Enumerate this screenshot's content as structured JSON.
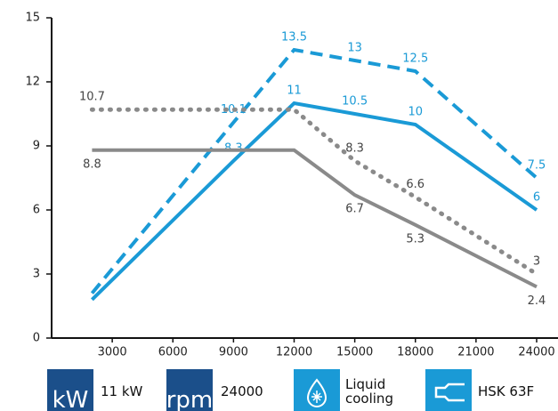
{
  "chart_data": {
    "type": "line",
    "xlim": [
      0,
      24000
    ],
    "xticks": [
      3000,
      6000,
      9000,
      12000,
      15000,
      18000,
      21000,
      24000
    ],
    "ylim": [
      0,
      15
    ],
    "yticks": [
      0,
      3,
      6,
      9,
      12,
      15
    ],
    "series": [
      {
        "color": "#1a9ad6",
        "dash": "dashed",
        "label_side": "above",
        "x": [
          2000,
          9000,
          12000,
          15000,
          18000,
          24000
        ],
        "values": [
          2.1,
          10.1,
          13.5,
          13,
          12.5,
          7.5
        ],
        "value_labels": [
          null,
          "10.1",
          "13.5",
          "13",
          "12.5",
          "7.5"
        ]
      },
      {
        "color": "#1a9ad6",
        "dash": "solid",
        "label_side": "above",
        "x": [
          2000,
          9000,
          12000,
          15000,
          18000,
          24000
        ],
        "values": [
          1.8,
          8.3,
          11,
          10.5,
          10,
          6
        ],
        "value_labels": [
          null,
          "8.3",
          "11",
          "10.5",
          "10",
          "6"
        ]
      },
      {
        "color": "#8a8a8a",
        "dash": "dotted",
        "label_side": "above",
        "x": [
          2000,
          12000,
          15000,
          18000,
          24000
        ],
        "values": [
          10.7,
          10.7,
          8.3,
          6.6,
          3
        ],
        "value_labels": [
          "10.7",
          null,
          "8.3",
          "6.6",
          "3"
        ]
      },
      {
        "color": "#8a8a8a",
        "dash": "solid",
        "label_side": "below",
        "x": [
          2000,
          12000,
          15000,
          18000,
          24000
        ],
        "values": [
          8.8,
          8.8,
          6.7,
          5.3,
          2.4
        ],
        "value_labels": [
          "8.8",
          null,
          "6.7",
          "5.3",
          "2.4"
        ]
      }
    ]
  },
  "badges": [
    {
      "icon": "kW",
      "text": "11 kW"
    },
    {
      "icon": "rpm",
      "text": "24000"
    },
    {
      "text": "Liquid cooling"
    },
    {
      "text": "HSK 63F"
    }
  ]
}
